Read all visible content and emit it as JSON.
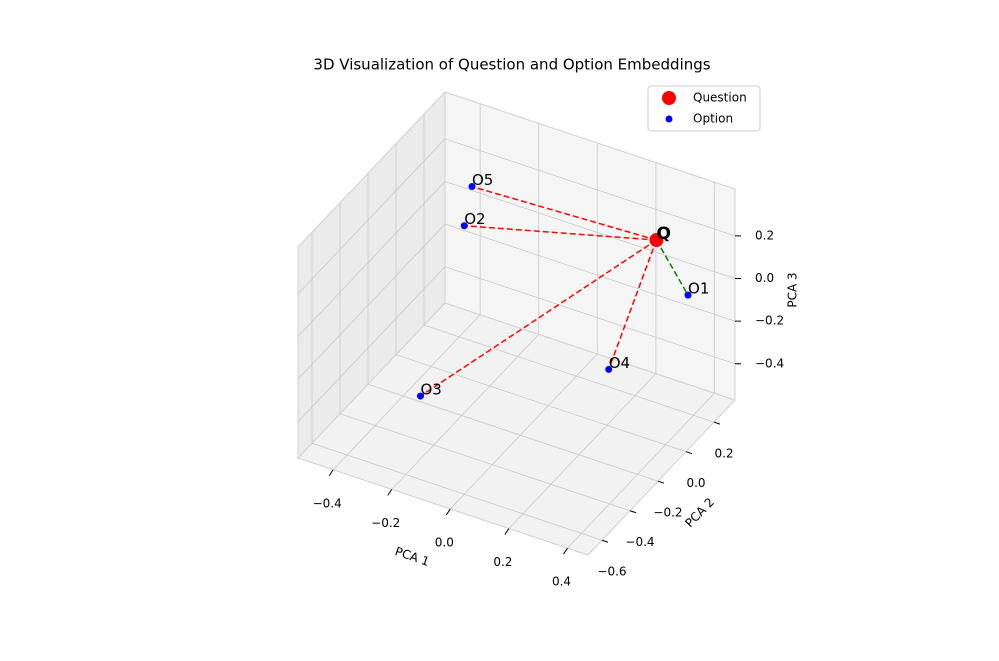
{
  "chart_data": {
    "type": "scatter3d",
    "title": "3D Visualization of Question and Option Embeddings",
    "xlabel": "PCA 1",
    "ylabel": "PCA 2",
    "zlabel": "PCA 3",
    "xlim": [
      -0.52,
      0.47
    ],
    "ylim": [
      -0.7,
      0.35
    ],
    "zlim": [
      -0.57,
      0.42
    ],
    "xticks": [
      {
        "value": -0.4,
        "label": "−0.4"
      },
      {
        "value": -0.2,
        "label": "−0.2"
      },
      {
        "value": 0,
        "label": "0.0"
      },
      0.2,
      0.4
    ],
    "yticks": [
      {
        "value": -0.6,
        "label": "−0.6"
      },
      {
        "value": -0.4,
        "label": "−0.4"
      },
      {
        "value": -0.2,
        "label": "−0.2"
      },
      {
        "value": 0,
        "label": "0.0"
      },
      0.2
    ],
    "zticks": [
      {
        "value": -0.4,
        "label": "−0.4"
      },
      {
        "value": -0.2,
        "label": "−0.2"
      },
      {
        "value": 0,
        "label": "0.0"
      },
      0.2
    ],
    "grid": true,
    "legend": "upper right",
    "series": [
      {
        "name": "Question",
        "color": "red",
        "x": [
          0.35
        ],
        "y": [
          0.04
        ],
        "z": [
          0.34
        ],
        "labels": [
          "Q"
        ]
      },
      {
        "name": "Option",
        "color": "blue",
        "x": [
          0.41,
          -0.33,
          -0.25,
          0.34,
          -0.38
        ],
        "y": [
          0.14,
          0.09,
          -0.39,
          -0.28,
          0.25
        ],
        "z": [
          0.04,
          0.06,
          -0.37,
          -0.05,
          0.11
        ],
        "labels": [
          "O1",
          "O2",
          "O3",
          "O4",
          "O5"
        ],
        "line_colors": [
          "green",
          "red",
          "red",
          "red",
          "red"
        ]
      }
    ]
  }
}
